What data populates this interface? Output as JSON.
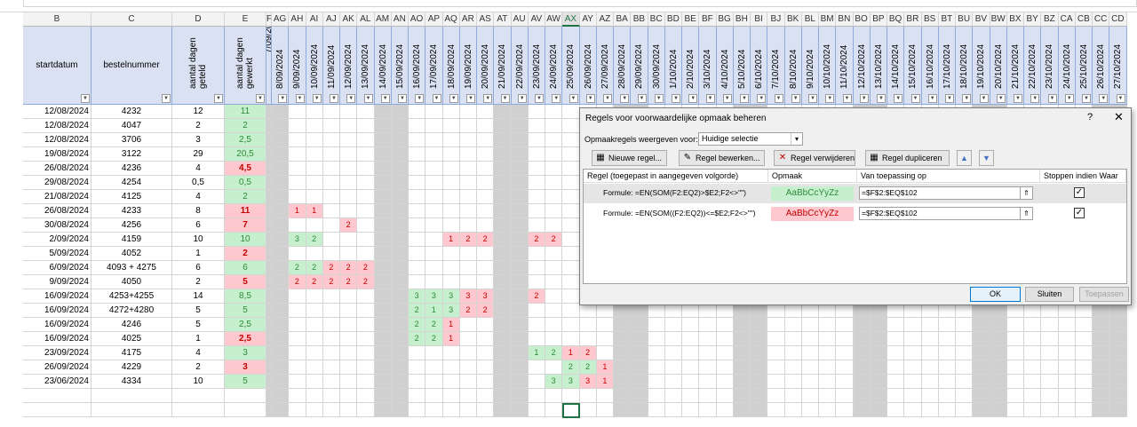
{
  "sheet": {
    "col_headers_left": [
      {
        "letter": "B",
        "w": 77
      },
      {
        "letter": "C",
        "w": 91
      },
      {
        "letter": "D",
        "w": 59
      },
      {
        "letter": "E",
        "w": 47
      },
      {
        "letter": "F",
        "w": 6
      }
    ],
    "date_letters": [
      "AG",
      "AH",
      "AI",
      "AJ",
      "AK",
      "AL",
      "AM",
      "AN",
      "AO",
      "AP",
      "AQ",
      "AR",
      "AS",
      "AT",
      "AU",
      "AV",
      "AW",
      "AX",
      "AY",
      "AZ",
      "BA",
      "BB",
      "BC",
      "BD",
      "BE",
      "BF",
      "BG",
      "BH",
      "BI",
      "BJ",
      "BK",
      "BL",
      "BM",
      "BN",
      "BO",
      "BP",
      "BQ",
      "BR",
      "BS",
      "BT",
      "BU",
      "BV",
      "BW",
      "BX",
      "BY",
      "BZ",
      "CA",
      "CB",
      "CC",
      "CD"
    ],
    "dates": [
      "8/09/2024",
      "9/09/2024",
      "10/09/2024",
      "11/09/2024",
      "12/09/2024",
      "13/09/2024",
      "14/09/2024",
      "15/09/2024",
      "16/09/2024",
      "17/09/2024",
      "18/09/2024",
      "19/09/2024",
      "20/09/2024",
      "21/09/2024",
      "22/09/2024",
      "23/09/2024",
      "24/09/2024",
      "25/09/2024",
      "26/09/2024",
      "27/09/2024",
      "28/09/2024",
      "29/09/2024",
      "30/09/2024",
      "1/10/2024",
      "2/10/2024",
      "3/10/2024",
      "4/10/2024",
      "5/10/2024",
      "6/10/2024",
      "7/10/2024",
      "8/10/2024",
      "9/10/2024",
      "10/10/2024",
      "11/10/2024",
      "12/10/2024",
      "13/10/2024",
      "14/10/2024",
      "15/10/2024",
      "16/10/2024",
      "17/10/2024",
      "18/10/2024",
      "19/10/2024",
      "20/10/2024",
      "21/10/2024",
      "22/10/2024",
      "23/10/2024",
      "24/10/2024",
      "25/10/2024",
      "26/10/2024",
      "27/10/2024"
    ],
    "partial_date": "7/09/2024",
    "weekend_indices": [
      0,
      6,
      7,
      13,
      14,
      20,
      21,
      27,
      28,
      34,
      35,
      41,
      42,
      48,
      49
    ],
    "headers": {
      "b": "startdatum",
      "c": "bestelnummer",
      "d": "aantal dagen geteld",
      "e": "aantal dagen gewerkt"
    },
    "rows": [
      {
        "b": "12/08/2024",
        "c": "4232",
        "d": "12",
        "e": "11",
        "st": "g"
      },
      {
        "b": "12/08/2024",
        "c": "4047",
        "d": "2",
        "e": "2",
        "st": "g"
      },
      {
        "b": "12/08/2024",
        "c": "3706",
        "d": "3",
        "e": "2,5",
        "st": "g"
      },
      {
        "b": "19/08/2024",
        "c": "3122",
        "d": "29",
        "e": "20,5",
        "st": "g"
      },
      {
        "b": "26/08/2024",
        "c": "4236",
        "d": "4",
        "e": "4,5",
        "st": "r"
      },
      {
        "b": "29/08/2024",
        "c": "4254",
        "d": "0,5",
        "e": "0,5",
        "st": "g"
      },
      {
        "b": "21/08/2024",
        "c": "4125",
        "d": "4",
        "e": "2",
        "st": "g"
      },
      {
        "b": "26/08/2024",
        "c": "4233",
        "d": "8",
        "e": "11",
        "st": "r"
      },
      {
        "b": "30/08/2024",
        "c": "4256",
        "d": "6",
        "e": "7",
        "st": "r"
      },
      {
        "b": "2/09/2024",
        "c": "4159",
        "d": "10",
        "e": "10",
        "st": "g"
      },
      {
        "b": "5/09/2024",
        "c": "4052",
        "d": "1",
        "e": "2",
        "st": "r"
      },
      {
        "b": "6/09/2024",
        "c": "4093 + 4275",
        "d": "6",
        "e": "6",
        "st": "g"
      },
      {
        "b": "9/09/2024",
        "c": "4050",
        "d": "2",
        "e": "5",
        "st": "r"
      },
      {
        "b": "16/09/2024",
        "c": "4253+4255",
        "d": "14",
        "e": "8,5",
        "st": "g"
      },
      {
        "b": "16/09/2024",
        "c": "4272+4280",
        "d": "5",
        "e": "5",
        "st": "g"
      },
      {
        "b": "16/09/2024",
        "c": "4246",
        "d": "5",
        "e": "2,5",
        "st": "g"
      },
      {
        "b": "16/09/2024",
        "c": "4025",
        "d": "1",
        "e": "2,5",
        "st": "r"
      },
      {
        "b": "23/09/2024",
        "c": "4175",
        "d": "4",
        "e": "3",
        "st": "g"
      },
      {
        "b": "26/09/2024",
        "c": "4229",
        "d": "2",
        "e": "3",
        "st": "r"
      },
      {
        "b": "23/06/2024",
        "c": "4334",
        "d": "10",
        "e": "5",
        "st": "g"
      }
    ],
    "marks": [
      {
        "row": 7,
        "col": 1,
        "v": "1",
        "st": "r"
      },
      {
        "row": 7,
        "col": 2,
        "v": "1",
        "st": "r"
      },
      {
        "row": 8,
        "col": 4,
        "v": "2",
        "st": "r"
      },
      {
        "row": 9,
        "col": 1,
        "v": "3",
        "st": "g"
      },
      {
        "row": 9,
        "col": 2,
        "v": "2",
        "st": "g"
      },
      {
        "row": 9,
        "col": 10,
        "v": "1",
        "st": "r"
      },
      {
        "row": 9,
        "col": 11,
        "v": "2",
        "st": "r"
      },
      {
        "row": 9,
        "col": 12,
        "v": "2",
        "st": "r"
      },
      {
        "row": 9,
        "col": 15,
        "v": "2",
        "st": "r"
      },
      {
        "row": 9,
        "col": 16,
        "v": "2",
        "st": "r"
      },
      {
        "row": 11,
        "col": 1,
        "v": "2",
        "st": "g"
      },
      {
        "row": 11,
        "col": 2,
        "v": "2",
        "st": "g"
      },
      {
        "row": 11,
        "col": 3,
        "v": "2",
        "st": "r"
      },
      {
        "row": 11,
        "col": 4,
        "v": "2",
        "st": "r"
      },
      {
        "row": 11,
        "col": 5,
        "v": "2",
        "st": "r"
      },
      {
        "row": 12,
        "col": 1,
        "v": "2",
        "st": "r"
      },
      {
        "row": 12,
        "col": 2,
        "v": "2",
        "st": "r"
      },
      {
        "row": 12,
        "col": 3,
        "v": "2",
        "st": "r"
      },
      {
        "row": 12,
        "col": 4,
        "v": "2",
        "st": "r"
      },
      {
        "row": 12,
        "col": 5,
        "v": "2",
        "st": "r"
      },
      {
        "row": 13,
        "col": 8,
        "v": "3",
        "st": "g"
      },
      {
        "row": 13,
        "col": 9,
        "v": "3",
        "st": "g"
      },
      {
        "row": 13,
        "col": 10,
        "v": "3",
        "st": "g"
      },
      {
        "row": 13,
        "col": 11,
        "v": "3",
        "st": "r"
      },
      {
        "row": 13,
        "col": 12,
        "v": "3",
        "st": "r"
      },
      {
        "row": 13,
        "col": 15,
        "v": "2",
        "st": "r"
      },
      {
        "row": 14,
        "col": 8,
        "v": "2",
        "st": "g"
      },
      {
        "row": 14,
        "col": 9,
        "v": "1",
        "st": "g"
      },
      {
        "row": 14,
        "col": 10,
        "v": "3",
        "st": "g"
      },
      {
        "row": 14,
        "col": 11,
        "v": "2",
        "st": "r"
      },
      {
        "row": 14,
        "col": 12,
        "v": "2",
        "st": "r"
      },
      {
        "row": 15,
        "col": 8,
        "v": "2",
        "st": "g"
      },
      {
        "row": 15,
        "col": 9,
        "v": "2",
        "st": "g"
      },
      {
        "row": 15,
        "col": 10,
        "v": "1",
        "st": "r"
      },
      {
        "row": 16,
        "col": 8,
        "v": "2",
        "st": "g"
      },
      {
        "row": 16,
        "col": 9,
        "v": "2",
        "st": "g"
      },
      {
        "row": 16,
        "col": 10,
        "v": "1",
        "st": "r"
      },
      {
        "row": 17,
        "col": 15,
        "v": "1",
        "st": "g"
      },
      {
        "row": 17,
        "col": 16,
        "v": "2",
        "st": "g"
      },
      {
        "row": 17,
        "col": 17,
        "v": "1",
        "st": "r"
      },
      {
        "row": 17,
        "col": 18,
        "v": "2",
        "st": "r"
      },
      {
        "row": 18,
        "col": 17,
        "v": "2",
        "st": "g"
      },
      {
        "row": 18,
        "col": 18,
        "v": "2",
        "st": "g"
      },
      {
        "row": 18,
        "col": 19,
        "v": "1",
        "st": "r"
      },
      {
        "row": 19,
        "col": 16,
        "v": "3",
        "st": "g"
      },
      {
        "row": 19,
        "col": 17,
        "v": "3",
        "st": "g"
      },
      {
        "row": 19,
        "col": 18,
        "v": "3",
        "st": "r"
      },
      {
        "row": 19,
        "col": 19,
        "v": "1",
        "st": "r"
      }
    ],
    "selected_letter": "AX",
    "colors": {
      "green_fill": "#c6efce",
      "green_text": "#2e8b3a",
      "red_fill": "#ffc7ce",
      "red_text": "#c00000",
      "header_fill": "#d9e1f2",
      "weekend_fill": "#d0d0d0"
    }
  },
  "dialog": {
    "title": "Regels voor voorwaardelijke opmaak beheren",
    "help": "?",
    "close": "✕",
    "show_label": "Opmaakregels weergeven voor:",
    "show_value": "Huidige selectie",
    "buttons": {
      "new_rule": "Nieuwe regel...",
      "edit_rule": "Regel bewerken...",
      "delete_rule": "Regel verwijderen",
      "duplicate_rule": "Regel dupliceren",
      "up": "▲",
      "down": "▼"
    },
    "table_headers": {
      "rule": "Regel (toegepast in aangegeven volgorde)",
      "format": "Opmaak",
      "applies": "Van toepassing op",
      "stop": "Stoppen indien Waar"
    },
    "rules": [
      {
        "formula": "Formule: =EN(SOM(F2:EQ2)>$E2;F2<>\"\")",
        "sample": "AaBbCcYyZz",
        "applies": "=$F$2:$EQ$102",
        "stop": "✓"
      },
      {
        "formula": "Formule: =EN(SOM((F2:EQ2))<=$E2;F2<>\"\")",
        "sample": "AaBbCcYyZz",
        "applies": "=$F$2:$EQ$102",
        "stop": "✓"
      }
    ],
    "ok": "OK",
    "close_btn": "Sluiten",
    "apply": "Toepassen"
  }
}
